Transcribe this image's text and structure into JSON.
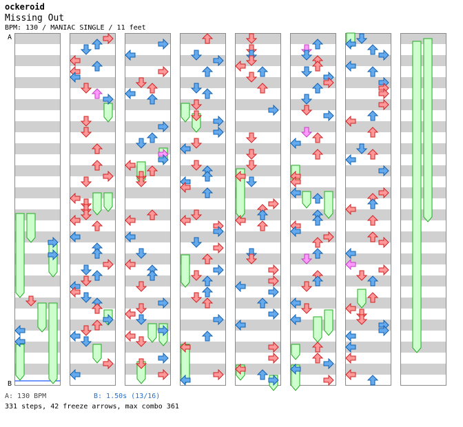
{
  "header": {
    "author": "ockeroid",
    "song_title": "Missing Out",
    "meta": "BPM: 130 / MANIAC SINGLE / 11 feet"
  },
  "markers": {
    "start": "A",
    "end": "B"
  },
  "footer": {
    "bpm_legend": "A: 130 BPM",
    "speed_legend": "B: 1.50s (13/16)",
    "stats": "331 steps, 42 freeze arrows, max combo 361"
  },
  "colors": {
    "stripe": "#d0d0d0",
    "column_border": "#888888",
    "arrow_red": "#ff9999",
    "arrow_red_stroke": "#d02020",
    "arrow_blue": "#66aaee",
    "arrow_blue_stroke": "#1060b0",
    "arrow_pink": "#ff99ff",
    "freeze_fill": "#ccffcc",
    "freeze_stroke": "#22aa22",
    "speed_line": "#4477ff"
  }
}
